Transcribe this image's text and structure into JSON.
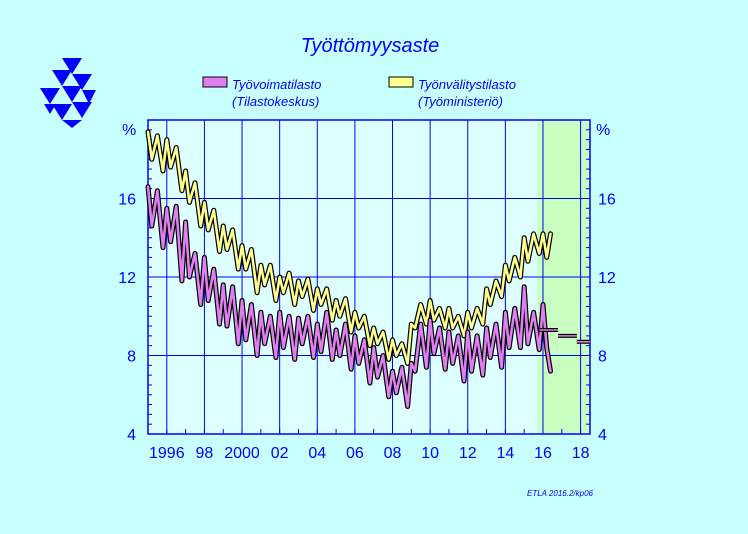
{
  "chart_data": {
    "type": "line",
    "title": "Työttömyysaste",
    "ylabel": "%",
    "ylabel_right": "%",
    "ylim": [
      4,
      20
    ],
    "yticks": [
      4,
      8,
      12,
      16
    ],
    "xlim": [
      1995.0,
      2018.5
    ],
    "xticks": [
      {
        "year": 1996,
        "label": "1996"
      },
      {
        "year": 1998,
        "label": "98"
      },
      {
        "year": 2000,
        "label": "2000"
      },
      {
        "year": 2002,
        "label": "02"
      },
      {
        "year": 2004,
        "label": "04"
      },
      {
        "year": 2006,
        "label": "06"
      },
      {
        "year": 2008,
        "label": "08"
      },
      {
        "year": 2010,
        "label": "10"
      },
      {
        "year": 2012,
        "label": "12"
      },
      {
        "year": 2014,
        "label": "14"
      },
      {
        "year": 2016,
        "label": "16"
      },
      {
        "year": 2018,
        "label": "18"
      }
    ],
    "forecast_band": {
      "start": 2015.7,
      "end": 2018.5,
      "color": "#c8ffc0"
    },
    "grid": true,
    "legend_position": "top",
    "legend": [
      {
        "line1": "Työvoimatilasto",
        "line2": "(Tilastokeskus)",
        "color": "#e080f0"
      },
      {
        "line1": "Työnvälitystilasto",
        "line2": "(Työministeriö)",
        "color": "#ffff90"
      }
    ],
    "series": [
      {
        "name": "Työvoimatilasto",
        "color": "#e080f0",
        "points": [
          [
            1995.0,
            16.6
          ],
          [
            1995.2,
            14.6
          ],
          [
            1995.5,
            16.4
          ],
          [
            1995.8,
            13.5
          ],
          [
            1996.0,
            15.5
          ],
          [
            1996.2,
            13.8
          ],
          [
            1996.5,
            15.6
          ],
          [
            1996.8,
            11.8
          ],
          [
            1997.0,
            14.8
          ],
          [
            1997.2,
            12.0
          ],
          [
            1997.5,
            13.2
          ],
          [
            1997.8,
            10.6
          ],
          [
            1998.0,
            13.0
          ],
          [
            1998.2,
            10.8
          ],
          [
            1998.5,
            12.4
          ],
          [
            1998.8,
            9.6
          ],
          [
            1999.0,
            11.6
          ],
          [
            1999.2,
            9.5
          ],
          [
            1999.5,
            11.5
          ],
          [
            1999.8,
            8.6
          ],
          [
            2000.0,
            10.8
          ],
          [
            2000.2,
            8.8
          ],
          [
            2000.5,
            10.6
          ],
          [
            2000.8,
            8.0
          ],
          [
            2001.0,
            10.2
          ],
          [
            2001.2,
            8.6
          ],
          [
            2001.5,
            10.0
          ],
          [
            2001.8,
            7.9
          ],
          [
            2002.0,
            10.2
          ],
          [
            2002.2,
            8.4
          ],
          [
            2002.5,
            10.0
          ],
          [
            2002.8,
            7.8
          ],
          [
            2003.0,
            9.9
          ],
          [
            2003.2,
            8.6
          ],
          [
            2003.5,
            10.0
          ],
          [
            2003.8,
            7.9
          ],
          [
            2004.0,
            9.6
          ],
          [
            2004.2,
            8.2
          ],
          [
            2004.5,
            10.2
          ],
          [
            2004.8,
            7.8
          ],
          [
            2005.0,
            9.3
          ],
          [
            2005.2,
            8.0
          ],
          [
            2005.5,
            9.6
          ],
          [
            2005.8,
            7.3
          ],
          [
            2006.0,
            9.0
          ],
          [
            2006.2,
            7.6
          ],
          [
            2006.5,
            8.8
          ],
          [
            2006.8,
            6.6
          ],
          [
            2007.0,
            8.4
          ],
          [
            2007.2,
            6.9
          ],
          [
            2007.5,
            8.0
          ],
          [
            2007.8,
            5.9
          ],
          [
            2008.0,
            7.2
          ],
          [
            2008.2,
            6.1
          ],
          [
            2008.5,
            7.4
          ],
          [
            2008.8,
            5.4
          ],
          [
            2009.0,
            7.6
          ],
          [
            2009.2,
            7.2
          ],
          [
            2009.5,
            9.6
          ],
          [
            2009.8,
            7.4
          ],
          [
            2010.0,
            9.8
          ],
          [
            2010.2,
            8.1
          ],
          [
            2010.5,
            9.4
          ],
          [
            2010.8,
            7.3
          ],
          [
            2011.0,
            9.2
          ],
          [
            2011.2,
            7.6
          ],
          [
            2011.5,
            9.0
          ],
          [
            2011.8,
            6.7
          ],
          [
            2012.0,
            9.2
          ],
          [
            2012.2,
            7.2
          ],
          [
            2012.5,
            9.0
          ],
          [
            2012.8,
            7.0
          ],
          [
            2013.0,
            9.4
          ],
          [
            2013.2,
            7.9
          ],
          [
            2013.5,
            9.6
          ],
          [
            2013.8,
            7.4
          ],
          [
            2014.0,
            10.2
          ],
          [
            2014.2,
            8.4
          ],
          [
            2014.5,
            10.4
          ],
          [
            2014.8,
            8.4
          ],
          [
            2015.0,
            11.5
          ],
          [
            2015.2,
            8.6
          ],
          [
            2015.5,
            10.2
          ],
          [
            2015.8,
            8.3
          ],
          [
            2016.0,
            10.6
          ],
          [
            2016.2,
            8.4
          ],
          [
            2016.4,
            7.2
          ]
        ]
      },
      {
        "name": "Työnvälitystilasto",
        "color": "#ffff90",
        "points": [
          [
            1995.0,
            19.4
          ],
          [
            1995.2,
            18.0
          ],
          [
            1995.5,
            19.2
          ],
          [
            1995.8,
            17.4
          ],
          [
            1996.0,
            19.0
          ],
          [
            1996.2,
            17.6
          ],
          [
            1996.5,
            18.6
          ],
          [
            1996.8,
            16.4
          ],
          [
            1997.0,
            17.4
          ],
          [
            1997.2,
            15.8
          ],
          [
            1997.5,
            16.8
          ],
          [
            1997.8,
            14.6
          ],
          [
            1998.0,
            15.8
          ],
          [
            1998.2,
            14.4
          ],
          [
            1998.5,
            15.4
          ],
          [
            1998.8,
            13.3
          ],
          [
            1999.0,
            14.6
          ],
          [
            1999.2,
            13.4
          ],
          [
            1999.5,
            14.4
          ],
          [
            1999.8,
            12.4
          ],
          [
            2000.0,
            13.6
          ],
          [
            2000.2,
            12.4
          ],
          [
            2000.5,
            13.4
          ],
          [
            2000.8,
            11.2
          ],
          [
            2001.0,
            12.6
          ],
          [
            2001.2,
            11.6
          ],
          [
            2001.5,
            12.6
          ],
          [
            2001.8,
            10.8
          ],
          [
            2002.0,
            12.0
          ],
          [
            2002.2,
            11.2
          ],
          [
            2002.5,
            12.2
          ],
          [
            2002.8,
            10.6
          ],
          [
            2003.0,
            11.8
          ],
          [
            2003.2,
            11.0
          ],
          [
            2003.5,
            11.9
          ],
          [
            2003.8,
            10.3
          ],
          [
            2004.0,
            11.4
          ],
          [
            2004.2,
            10.6
          ],
          [
            2004.5,
            11.4
          ],
          [
            2004.8,
            9.8
          ],
          [
            2005.0,
            10.8
          ],
          [
            2005.2,
            10.0
          ],
          [
            2005.5,
            10.9
          ],
          [
            2005.8,
            9.2
          ],
          [
            2006.0,
            10.2
          ],
          [
            2006.2,
            9.4
          ],
          [
            2006.5,
            10.0
          ],
          [
            2006.8,
            8.5
          ],
          [
            2007.0,
            9.4
          ],
          [
            2007.2,
            8.6
          ],
          [
            2007.5,
            9.2
          ],
          [
            2007.8,
            7.8
          ],
          [
            2008.0,
            8.8
          ],
          [
            2008.2,
            8.0
          ],
          [
            2008.5,
            8.6
          ],
          [
            2008.8,
            7.6
          ],
          [
            2009.0,
            9.6
          ],
          [
            2009.2,
            9.4
          ],
          [
            2009.5,
            10.6
          ],
          [
            2009.8,
            9.6
          ],
          [
            2010.0,
            10.8
          ],
          [
            2010.2,
            9.8
          ],
          [
            2010.5,
            10.4
          ],
          [
            2010.8,
            9.4
          ],
          [
            2011.0,
            10.4
          ],
          [
            2011.2,
            9.4
          ],
          [
            2011.5,
            10.0
          ],
          [
            2011.8,
            9.0
          ],
          [
            2012.0,
            10.2
          ],
          [
            2012.2,
            9.4
          ],
          [
            2012.5,
            10.4
          ],
          [
            2012.8,
            9.6
          ],
          [
            2013.0,
            11.4
          ],
          [
            2013.2,
            10.6
          ],
          [
            2013.5,
            11.8
          ],
          [
            2013.8,
            11.0
          ],
          [
            2014.0,
            12.6
          ],
          [
            2014.2,
            11.8
          ],
          [
            2014.5,
            13.0
          ],
          [
            2014.8,
            12.0
          ],
          [
            2015.0,
            14.0
          ],
          [
            2015.2,
            12.8
          ],
          [
            2015.5,
            14.2
          ],
          [
            2015.8,
            13.2
          ],
          [
            2016.0,
            14.2
          ],
          [
            2016.2,
            13.0
          ],
          [
            2016.4,
            14.2
          ]
        ]
      }
    ],
    "forecast_segments": [
      {
        "start": 2015.8,
        "end": 2016.8,
        "value": 9.3
      },
      {
        "start": 2016.8,
        "end": 2017.8,
        "value": 9.0
      },
      {
        "start": 2017.8,
        "end": 2018.5,
        "value": 8.7
      }
    ],
    "source_note": "ETLA 2016.2/kp06"
  }
}
